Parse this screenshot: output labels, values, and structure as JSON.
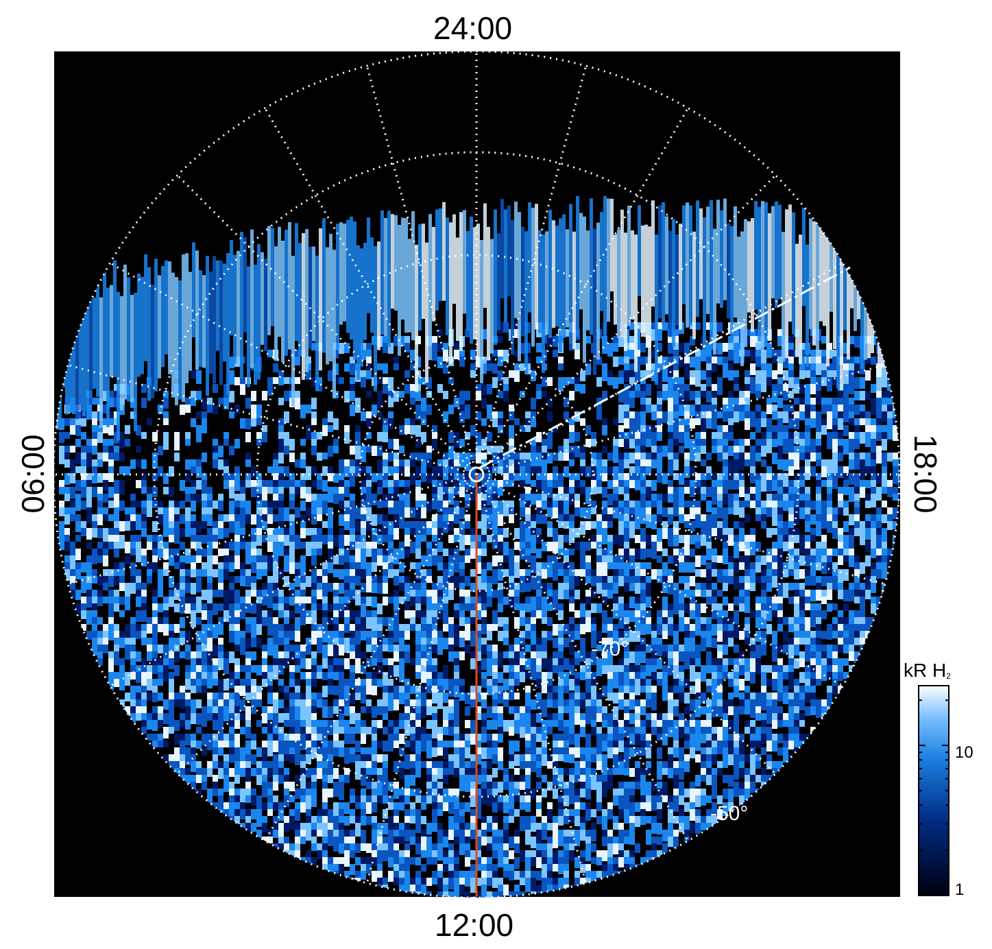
{
  "local_time_labels": {
    "top": "24:00",
    "bottom": "12:00",
    "left": "06:00",
    "right": "18:00"
  },
  "latitude_labels": [
    "-70°",
    "-50°"
  ],
  "colorbar": {
    "title_main": "kR H",
    "title_sub": "2",
    "tick_labels": [
      "1",
      "10"
    ],
    "scale": "log",
    "range": [
      1,
      25
    ]
  },
  "colors": {
    "background": "#000000",
    "grid": "#ffffff",
    "noon_meridian": "#e04a1a",
    "emission_low": "#000020",
    "emission_mid": "#1a7fe0",
    "emission_high": "#ffffff"
  }
}
